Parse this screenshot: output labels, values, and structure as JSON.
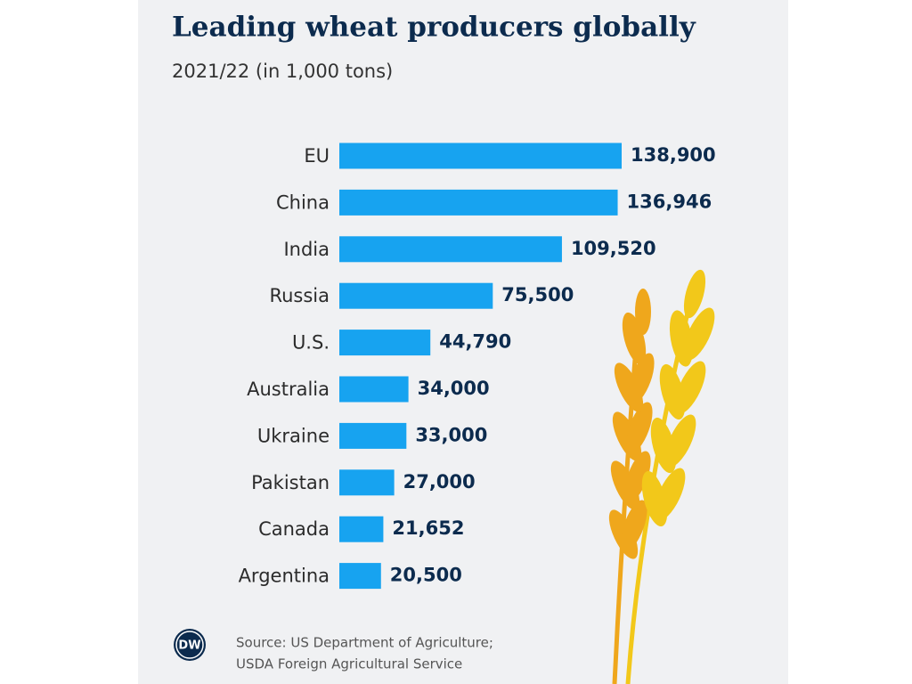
{
  "chart_data": {
    "type": "bar",
    "orientation": "horizontal",
    "title": "Leading wheat producers globally",
    "subtitle": "2021/22 (in 1,000 tons)",
    "categories": [
      "EU",
      "China",
      "India",
      "Russia",
      "U.S.",
      "Australia",
      "Ukraine",
      "Pakistan",
      "Canada",
      "Argentina"
    ],
    "values": [
      138900,
      136946,
      109520,
      75500,
      44790,
      34000,
      33000,
      27000,
      21652,
      20500
    ],
    "value_labels": [
      "138,900",
      "136,946",
      "109,520",
      "75,500",
      "44,790",
      "34,000",
      "33,000",
      "27,000",
      "21,652",
      "20,500"
    ],
    "color": "#17a3f0",
    "source": [
      "Source: US Department of Agriculture;",
      "USDA Foreign Agricultural Service"
    ],
    "logo": "DW"
  }
}
